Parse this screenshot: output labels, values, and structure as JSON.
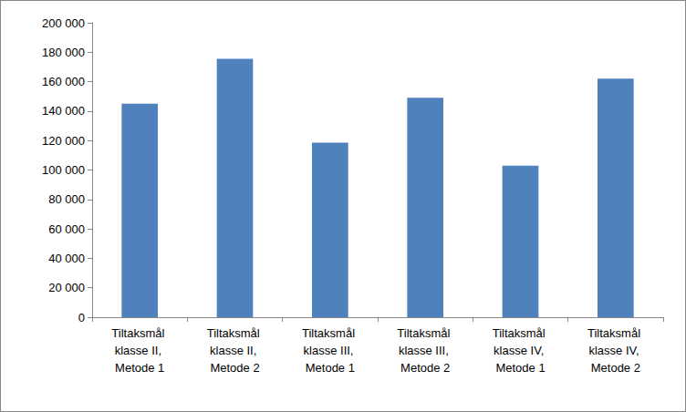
{
  "chart_data": {
    "type": "bar",
    "categories": [
      "Tiltaksmål klasse II, Metode 1",
      "Tiltaksmål klasse II, Metode 2",
      "Tiltaksmål klasse III, Metode 1",
      "Tiltaksmål klasse III, Metode 2",
      "Tiltaksmål klasse IV, Metode 1",
      "Tiltaksmål klasse IV, Metode 2"
    ],
    "values": [
      145000,
      175500,
      118500,
      149000,
      103000,
      162000
    ],
    "color": "#4f81bd",
    "ylim": [
      0,
      200000
    ],
    "yticks": [
      0,
      {
        "value": 20000,
        "label": "20 000"
      },
      {
        "value": 40000,
        "label": "40 000"
      },
      {
        "value": 60000,
        "label": "60 000"
      },
      {
        "value": 80000,
        "label": "80 000"
      },
      {
        "value": 100000,
        "label": "100 000"
      },
      {
        "value": 120000,
        "label": "120 000"
      },
      {
        "value": 140000,
        "label": "140 000"
      },
      {
        "value": 160000,
        "label": "160 000"
      },
      {
        "value": 180000,
        "label": "180 000"
      },
      {
        "value": 200000,
        "label": "200 000"
      }
    ],
    "grid": false
  }
}
